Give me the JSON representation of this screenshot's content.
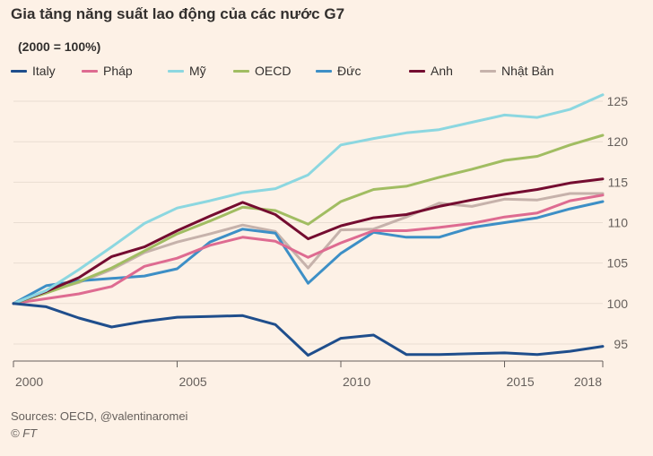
{
  "chart_data": {
    "type": "line",
    "title": "Gia tăng năng suất lao động của các nước G7",
    "subtitle": "(2000 = 100%)",
    "xlabel": "",
    "ylabel": "",
    "xlim": [
      2000,
      2018
    ],
    "ylim": [
      93,
      127
    ],
    "grid": true,
    "legend_position": "top",
    "x": [
      2000,
      2001,
      2002,
      2003,
      2004,
      2005,
      2006,
      2007,
      2008,
      2009,
      2010,
      2011,
      2012,
      2013,
      2014,
      2015,
      2016,
      2017,
      2018
    ],
    "x_ticks": [
      {
        "value": 2000,
        "label": "2000"
      },
      {
        "value": 2005,
        "label": "2005"
      },
      {
        "value": 2010,
        "label": "2010"
      },
      {
        "value": 2015,
        "label": "2015"
      },
      {
        "value": 2018,
        "label": "2018"
      }
    ],
    "y_ticks": [
      {
        "value": 95,
        "label": "95"
      },
      {
        "value": 100,
        "label": "100"
      },
      {
        "value": 105,
        "label": "105"
      },
      {
        "value": 110,
        "label": "110"
      },
      {
        "value": 115,
        "label": "115"
      },
      {
        "value": 120,
        "label": "120"
      },
      {
        "value": 125,
        "label": "125"
      }
    ],
    "series": [
      {
        "name": "Nhật Bản",
        "color": "#c6b2ab",
        "values": [
          100,
          101.5,
          102.6,
          104.2,
          106.3,
          107.6,
          108.6,
          109.7,
          108.9,
          104.4,
          109.1,
          109.2,
          110.7,
          112.4,
          112,
          112.9,
          112.8,
          113.6,
          113.6
        ]
      },
      {
        "name": "Đức",
        "color": "#3d8fc6",
        "values": [
          100,
          102.2,
          102.8,
          103.1,
          103.4,
          104.3,
          107.6,
          109.2,
          108.7,
          102.5,
          106.2,
          108.8,
          108.2,
          108.2,
          109.4,
          110,
          110.6,
          111.7,
          112.6
        ]
      },
      {
        "name": "Pháp",
        "color": "#de6b91",
        "values": [
          100,
          100.6,
          101.2,
          102.1,
          104.6,
          105.6,
          107.2,
          108.2,
          107.7,
          105.7,
          107.5,
          109,
          109,
          109.4,
          109.9,
          110.7,
          111.2,
          112.7,
          113.4
        ]
      },
      {
        "name": "OECD",
        "color": "#a1bd62",
        "values": [
          100,
          101.3,
          102.7,
          104.4,
          106.5,
          108.6,
          110.2,
          111.9,
          111.5,
          109.8,
          112.6,
          114.1,
          114.5,
          115.6,
          116.6,
          117.7,
          118.2,
          119.6,
          120.8
        ]
      },
      {
        "name": "Anh",
        "color": "#740c30",
        "values": [
          100,
          101.5,
          103.2,
          105.8,
          107,
          109,
          110.8,
          112.5,
          111,
          108,
          109.6,
          110.6,
          111,
          112,
          112.8,
          113.5,
          114.1,
          114.9,
          115.4
        ]
      },
      {
        "name": "Mỹ",
        "color": "#8cd7e0",
        "values": [
          100,
          101.6,
          104.2,
          107,
          109.9,
          111.8,
          112.7,
          113.7,
          114.2,
          115.9,
          119.6,
          120.4,
          121.1,
          121.5,
          122.4,
          123.3,
          123,
          124,
          125.8
        ]
      },
      {
        "name": "Italy",
        "color": "#1f4e8c",
        "values": [
          100,
          99.6,
          98.2,
          97.1,
          97.8,
          98.3,
          98.4,
          98.5,
          97.4,
          93.6,
          95.7,
          96.1,
          93.7,
          93.7,
          93.8,
          93.9,
          93.7,
          94.1,
          94.7
        ]
      }
    ],
    "legend_order": [
      "Italy",
      "Pháp",
      "Mỹ",
      "OECD",
      "Đức",
      "Anh",
      "Nhật Bản"
    ]
  },
  "footer": {
    "source": "Sources: OECD, @valentinaromei",
    "credit": "© FT"
  }
}
